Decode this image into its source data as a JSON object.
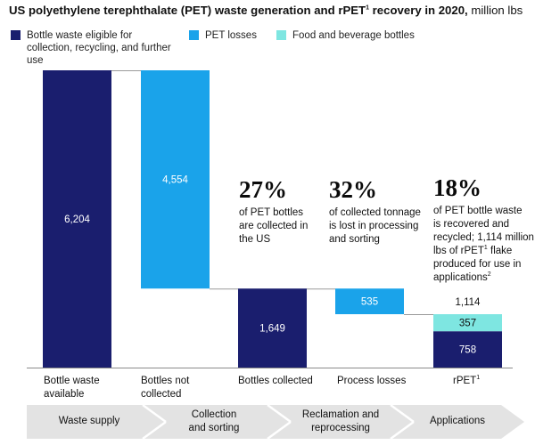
{
  "title": {
    "bold": "US polyethylene terephthalate (PET) waste generation and rPET",
    "sup": "1",
    "bold_after": " recovery in 2020,",
    "unit": " million lbs"
  },
  "legend": [
    {
      "label": "Bottle waste eligible for collection, recycling, and further use",
      "color": "#1a1e6e"
    },
    {
      "label": "PET losses",
      "color": "#1aa3ea"
    },
    {
      "label": "Food and beverage bottles",
      "color": "#7ee6e1"
    }
  ],
  "chart_data": {
    "type": "waterfall",
    "title": "US polyethylene terephthalate (PET) waste generation and rPET1 recovery in 2020, million lbs",
    "categories": [
      "Bottle waste available",
      "Bottles not collected",
      "Bottles collected",
      "Process losses",
      "rPET1"
    ],
    "series": [
      {
        "name": "Bottle waste eligible for collection, recycling, and further use",
        "values": [
          6204,
          null,
          1649,
          null,
          758
        ]
      },
      {
        "name": "PET losses",
        "values": [
          null,
          4554,
          null,
          535,
          null
        ]
      },
      {
        "name": "Food and beverage bottles",
        "values": [
          null,
          null,
          null,
          null,
          357
        ]
      }
    ],
    "bars": [
      {
        "category": "Bottle waste available",
        "base": 0,
        "top": 6204,
        "series": "Bottle waste eligible for collection, recycling, and further use",
        "label": "6,204"
      },
      {
        "category": "Bottles not collected",
        "base": 1649,
        "top": 6204,
        "series": "PET losses",
        "label": "4,554"
      },
      {
        "category": "Bottles collected",
        "base": 0,
        "top": 1649,
        "series": "Bottle waste eligible for collection, recycling, and further use",
        "label": "1,649"
      },
      {
        "category": "Process losses",
        "base": 1114,
        "top": 1649,
        "series": "PET losses",
        "label": "535"
      },
      {
        "category": "rPET1",
        "base": 0,
        "top": 758,
        "series": "Bottle waste eligible for collection, recycling, and further use",
        "label": "758"
      },
      {
        "category": "rPET1",
        "base": 758,
        "top": 1114,
        "series": "Food and beverage bottles",
        "label": "357"
      }
    ],
    "total_labels": [
      {
        "category": "rPET1",
        "value": 1114,
        "label": "1,114"
      }
    ],
    "ylim": [
      0,
      6204
    ],
    "xlabel": "",
    "ylabel": ""
  },
  "axis_labels": [
    {
      "line1": "Bottle waste",
      "line2": "available"
    },
    {
      "line1": "Bottles not",
      "line2": "collected"
    },
    {
      "line1": "Bottles collected",
      "line2": ""
    },
    {
      "line1": "Process losses",
      "line2": ""
    },
    {
      "line1": "rPET",
      "sup": "1",
      "line2": ""
    }
  ],
  "stats": [
    {
      "big": "27%",
      "lines": [
        "of PET bottles",
        "are collected in",
        "the US"
      ]
    },
    {
      "big": "32%",
      "lines": [
        "of collected tonnage",
        "is lost in processing",
        "and sorting"
      ]
    },
    {
      "big": "18%",
      "lines": [
        "of PET bottle waste",
        "is recovered and",
        "recycled; 1,114 million",
        "lbs of rPET",
        "flake",
        "produced for use in",
        "applications"
      ],
      "sup1": "1",
      "sup2": "2"
    }
  ],
  "stages": [
    {
      "line1": "Waste supply",
      "line2": ""
    },
    {
      "line1": "Collection",
      "line2": "and sorting"
    },
    {
      "line1": "Reclamation and",
      "line2": "reprocessing"
    },
    {
      "line1": "Applications",
      "line2": ""
    }
  ],
  "colors": {
    "navy": "#1a1e6e",
    "blue": "#1aa3ea",
    "teal": "#7ee6e1",
    "stage": "#e3e3e3"
  }
}
